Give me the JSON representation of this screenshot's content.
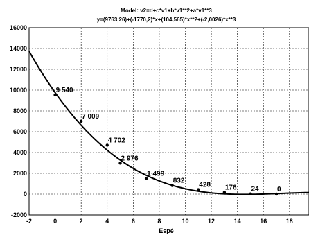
{
  "chart_data": {
    "type": "scatter",
    "title": "Model: v2=d+c*v1+b*v1**2+a*v1**3",
    "subtitle": "y=(9763,26)+(-1770,2)*x+(104,565)*x**2+(-2,0026)*x**3",
    "xlabel": "Espé",
    "ylabel": "",
    "xlim": [
      -2,
      19.5
    ],
    "ylim": [
      -2000,
      16000
    ],
    "x_ticks": [
      "-2",
      "0",
      "2",
      "4",
      "6",
      "8",
      "10",
      "12",
      "14",
      "16",
      "18"
    ],
    "y_ticks": [
      "-2000",
      "0",
      "2000",
      "4000",
      "6000",
      "8000",
      "10000",
      "12000",
      "14000",
      "16000"
    ],
    "grid": true,
    "legend": "none",
    "colors": {
      "points": "#000000",
      "curve": "#000000",
      "grid": "#000000",
      "background": "#ffffff"
    },
    "fit": {
      "d": 9763.26,
      "c": -1770.2,
      "b": 104.565,
      "a": -2.0026
    },
    "points": [
      {
        "x": 0,
        "y": 9540,
        "label": "9 540"
      },
      {
        "x": 2,
        "y": 7009,
        "label": "7 009"
      },
      {
        "x": 4,
        "y": 4702,
        "label": "4 702"
      },
      {
        "x": 5,
        "y": 2976,
        "label": "2 976"
      },
      {
        "x": 7,
        "y": 1499,
        "label": "1 499"
      },
      {
        "x": 9,
        "y": 832,
        "label": "832"
      },
      {
        "x": 11,
        "y": 428,
        "label": "428"
      },
      {
        "x": 13,
        "y": 176,
        "label": "176"
      },
      {
        "x": 15,
        "y": 24,
        "label": "24"
      },
      {
        "x": 17,
        "y": 0,
        "label": "0"
      }
    ]
  }
}
